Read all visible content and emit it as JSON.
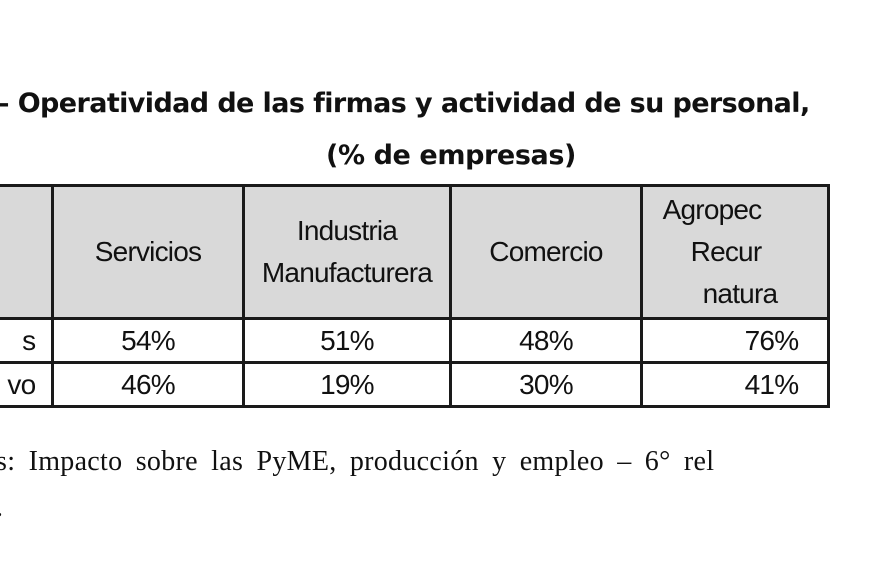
{
  "title": {
    "line1": "– Operatividad de las firmas y actividad de su personal,",
    "line2": "(% de empresas)"
  },
  "table": {
    "headers": [
      {
        "lines": [
          ""
        ]
      },
      {
        "lines": [
          "Servicios"
        ]
      },
      {
        "lines": [
          "Industria",
          "Manufacturera"
        ]
      },
      {
        "lines": [
          "Comercio"
        ]
      },
      {
        "lines": [
          "Agropec",
          "Recur",
          "natura"
        ]
      }
    ],
    "rows": [
      {
        "label": "s",
        "values": [
          "54%",
          "51%",
          "48%",
          "76%"
        ]
      },
      {
        "label": "vo",
        "values": [
          "46%",
          "19%",
          "30%",
          "41%"
        ]
      }
    ]
  },
  "note": {
    "line1": "s: Impacto sobre las PyME, producción y empleo – 6° rel",
    "line2": "."
  },
  "colors": {
    "header_bg": "#d9d9d9",
    "border": "#1a1a1a",
    "text": "#111111"
  }
}
